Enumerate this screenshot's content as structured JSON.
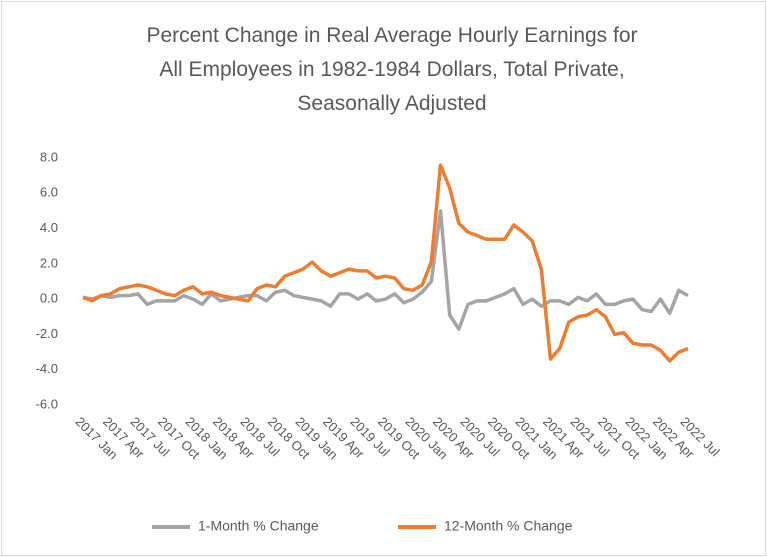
{
  "chart_data": {
    "type": "line",
    "title": [
      "Percent Change in Real Average Hourly Earnings for",
      "All Employees in 1982-1984  Dollars, Total Private,",
      "Seasonally Adjusted"
    ],
    "categories": [
      "2017 Jan",
      null,
      null,
      "2017 Apr",
      null,
      null,
      "2017 Jul",
      null,
      null,
      "2017 Oct",
      null,
      null,
      "2018 Jan",
      null,
      null,
      "2018 Apr",
      null,
      null,
      "2018 Jul",
      null,
      null,
      "2018 Oct",
      null,
      null,
      "2019 Jan",
      null,
      null,
      "2019 Apr",
      null,
      null,
      "2019 Jul",
      null,
      null,
      "2019 Oct",
      null,
      null,
      "2020 Jan",
      null,
      null,
      "2020 Apr",
      null,
      null,
      "2020 Jul",
      null,
      null,
      "2020 Oct",
      null,
      null,
      "2021 Jan",
      null,
      null,
      "2021 Apr",
      null,
      null,
      "2021 Jul",
      null,
      null,
      "2021 Oct",
      null,
      null,
      "2022 Jan",
      null,
      null,
      "2022 Apr",
      null,
      null,
      "2022 Jul"
    ],
    "series": [
      {
        "name": "1-Month % Change",
        "color": "#a5a5a5",
        "values": [
          0.1,
          0.0,
          0.2,
          0.1,
          0.2,
          0.2,
          0.3,
          -0.3,
          -0.1,
          -0.1,
          -0.1,
          0.2,
          0.0,
          -0.3,
          0.3,
          -0.1,
          0.0,
          0.1,
          0.2,
          0.2,
          -0.1,
          0.4,
          0.5,
          0.2,
          0.1,
          0.0,
          -0.1,
          -0.4,
          0.3,
          0.3,
          0.0,
          0.3,
          -0.1,
          0.0,
          0.3,
          -0.2,
          0.0,
          0.4,
          1.0,
          5.0,
          -0.9,
          -1.7,
          -0.3,
          -0.1,
          -0.1,
          0.1,
          0.3,
          0.6,
          -0.3,
          0.0,
          -0.4,
          -0.1,
          -0.1,
          -0.3,
          0.1,
          -0.1,
          0.3,
          -0.3,
          -0.3,
          -0.1,
          0.0,
          -0.6,
          -0.7,
          0.0,
          -0.8,
          0.5,
          0.2
        ]
      },
      {
        "name": "12-Month % Change",
        "color": "#ed7d31",
        "values": [
          0.1,
          -0.1,
          0.2,
          0.3,
          0.6,
          0.7,
          0.8,
          0.7,
          0.5,
          0.3,
          0.2,
          0.5,
          0.7,
          0.3,
          0.4,
          0.2,
          0.1,
          0.0,
          -0.1,
          0.6,
          0.8,
          0.7,
          1.3,
          1.5,
          1.7,
          2.1,
          1.6,
          1.3,
          1.5,
          1.7,
          1.6,
          1.6,
          1.2,
          1.3,
          1.2,
          0.6,
          0.5,
          0.8,
          2.1,
          7.6,
          6.3,
          4.3,
          3.8,
          3.6,
          3.4,
          3.4,
          3.4,
          4.2,
          3.8,
          3.3,
          1.7,
          -3.4,
          -2.8,
          -1.3,
          -1.0,
          -0.9,
          -0.6,
          -1.0,
          -2.0,
          -1.9,
          -2.5,
          -2.6,
          -2.6,
          -2.9,
          -3.5,
          -3.0,
          -2.8
        ]
      }
    ],
    "ylim": [
      -6,
      8
    ],
    "yticks": [
      {
        "value": 8,
        "label": "8.0"
      },
      {
        "value": 6,
        "label": "6.0"
      },
      {
        "value": 4,
        "label": "4.0"
      },
      {
        "value": 2,
        "label": "2.0"
      },
      {
        "value": 0,
        "label": "0.0"
      },
      {
        "value": -2,
        "label": "-2.0"
      },
      {
        "value": -4,
        "label": "-4.0"
      },
      {
        "value": -6,
        "label": "-6.0"
      }
    ],
    "grid": false,
    "legend": "bottom"
  }
}
